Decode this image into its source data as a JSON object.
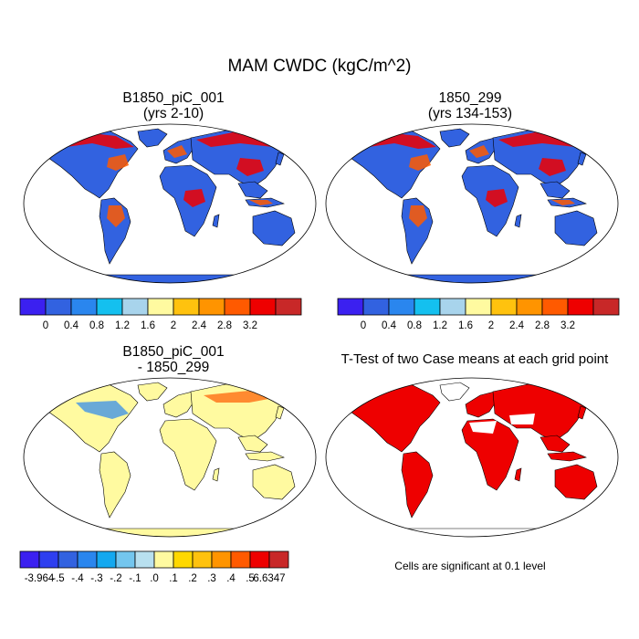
{
  "title": "MAM CWDC (kgC/m^2)",
  "panels": [
    {
      "title_line1": "B1850_piC_001",
      "title_line2": "(yrs 2-10)",
      "type": "field"
    },
    {
      "title_line1": "1850_299",
      "title_line2": "(yrs 134-153)",
      "type": "field"
    },
    {
      "title_line1": "B1850_piC_001",
      "title_line2": "- 1850_299",
      "type": "difference"
    },
    {
      "title_line1": "T-Test of two Case means at each grid point",
      "title_line2": "",
      "type": "significance"
    }
  ],
  "colorbar_fields": {
    "labels": [
      "0",
      "0.4",
      "0.8",
      "1.2",
      "1.6",
      "2",
      "2.4",
      "2.8",
      "3.2"
    ],
    "colors": [
      "#3b20f0",
      "#3262e0",
      "#2a86ee",
      "#14c0ef",
      "#a8d4ec",
      "#fffaa0",
      "#ffc20e",
      "#ff9400",
      "#ff5a00",
      "#ee0000",
      "#c82828"
    ]
  },
  "colorbar_difference": {
    "labels": [
      "-3.964",
      "-.5",
      "-.4",
      "-.3",
      "-.2",
      "-.1",
      ".0",
      ".1",
      ".2",
      ".3",
      ".4",
      ".5",
      "6.6347"
    ],
    "colors": [
      "#3b20f0",
      "#2e3ff0",
      "#3262e0",
      "#2a86ee",
      "#14a8ef",
      "#74c6ee",
      "#b8e0ef",
      "#fffaa0",
      "#ffd800",
      "#ffc20e",
      "#ff9400",
      "#ff5a00",
      "#ee0000",
      "#c82828"
    ]
  },
  "ttest_note": "Cells are significant at 0.1 level",
  "colors": {
    "ocean": "#ffffff",
    "land_field": "#3262e0",
    "land_difference": "#fffaa0",
    "significant": "#ee0000",
    "coastline": "#000000"
  }
}
